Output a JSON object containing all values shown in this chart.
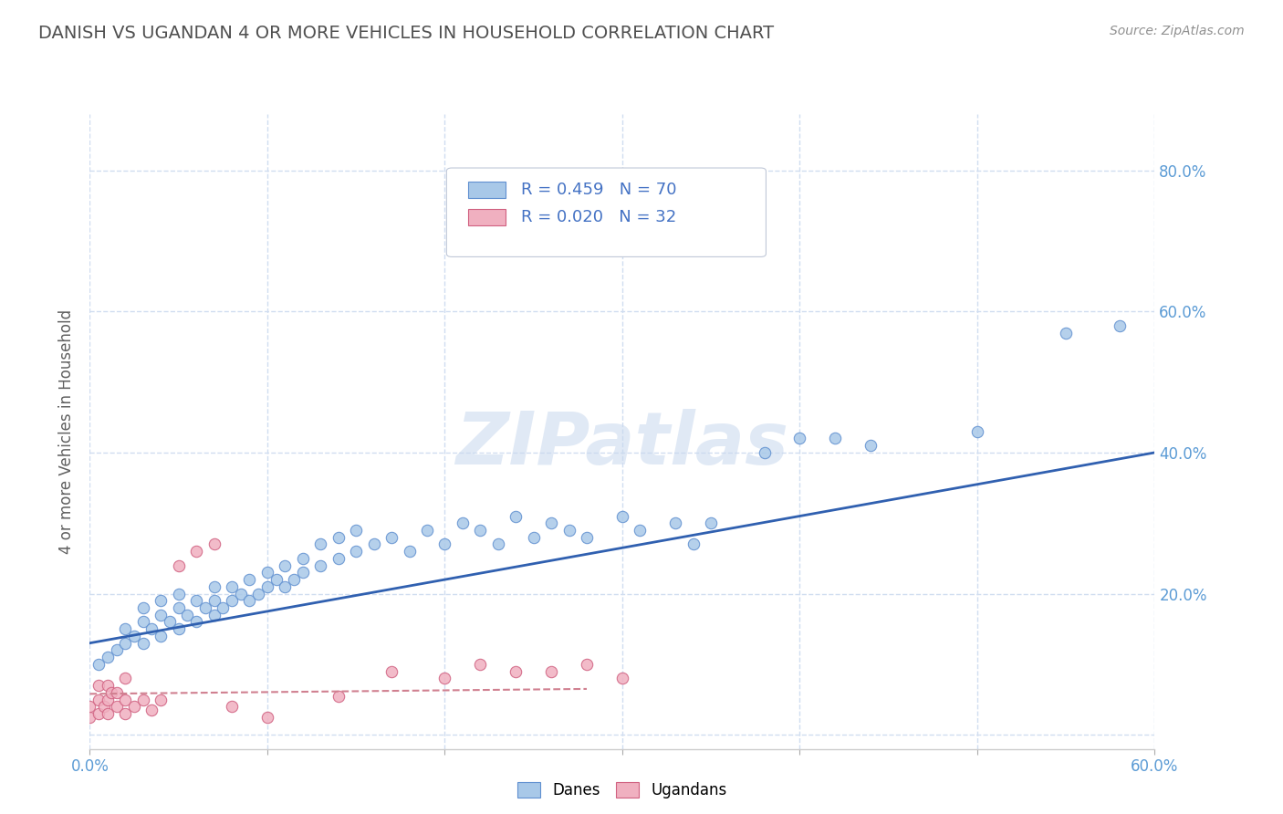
{
  "title": "DANISH VS UGANDAN 4 OR MORE VEHICLES IN HOUSEHOLD CORRELATION CHART",
  "source": "Source: ZipAtlas.com",
  "ylabel_label": "4 or more Vehicles in Household",
  "watermark": "ZIPatlas",
  "xlim": [
    0.0,
    0.6
  ],
  "ylim": [
    -0.02,
    0.88
  ],
  "xticks": [
    0.0,
    0.1,
    0.2,
    0.3,
    0.4,
    0.5,
    0.6
  ],
  "yticks": [
    0.0,
    0.2,
    0.4,
    0.6,
    0.8
  ],
  "ytick_labels_right": [
    "",
    "20.0%",
    "40.0%",
    "60.0%",
    "80.0%"
  ],
  "xtick_labels": [
    "0.0%",
    "",
    "",
    "",
    "",
    "",
    "60.0%"
  ],
  "danes_color": "#a8c8e8",
  "ugandans_color": "#f0b0c0",
  "danes_edge_color": "#6090d0",
  "ugandans_edge_color": "#d06080",
  "danes_line_color": "#3060b0",
  "ugandans_line_color": "#d08090",
  "title_color": "#505050",
  "legend_text_color": "#4472c4",
  "grid_color": "#d0ddf0",
  "background_color": "#ffffff",
  "danes_x": [
    0.005,
    0.01,
    0.015,
    0.02,
    0.02,
    0.025,
    0.03,
    0.03,
    0.03,
    0.035,
    0.04,
    0.04,
    0.04,
    0.045,
    0.05,
    0.05,
    0.05,
    0.055,
    0.06,
    0.06,
    0.065,
    0.07,
    0.07,
    0.07,
    0.075,
    0.08,
    0.08,
    0.085,
    0.09,
    0.09,
    0.095,
    0.1,
    0.1,
    0.105,
    0.11,
    0.11,
    0.115,
    0.12,
    0.12,
    0.13,
    0.13,
    0.14,
    0.14,
    0.15,
    0.15,
    0.16,
    0.17,
    0.18,
    0.19,
    0.2,
    0.21,
    0.22,
    0.23,
    0.24,
    0.25,
    0.26,
    0.27,
    0.28,
    0.3,
    0.31,
    0.33,
    0.34,
    0.35,
    0.38,
    0.4,
    0.42,
    0.44,
    0.5,
    0.55,
    0.58
  ],
  "danes_y": [
    0.1,
    0.11,
    0.12,
    0.13,
    0.15,
    0.14,
    0.13,
    0.16,
    0.18,
    0.15,
    0.14,
    0.17,
    0.19,
    0.16,
    0.15,
    0.18,
    0.2,
    0.17,
    0.16,
    0.19,
    0.18,
    0.17,
    0.19,
    0.21,
    0.18,
    0.19,
    0.21,
    0.2,
    0.19,
    0.22,
    0.2,
    0.21,
    0.23,
    0.22,
    0.21,
    0.24,
    0.22,
    0.23,
    0.25,
    0.24,
    0.27,
    0.25,
    0.28,
    0.26,
    0.29,
    0.27,
    0.28,
    0.26,
    0.29,
    0.27,
    0.3,
    0.29,
    0.27,
    0.31,
    0.28,
    0.3,
    0.29,
    0.28,
    0.31,
    0.29,
    0.3,
    0.27,
    0.3,
    0.4,
    0.42,
    0.42,
    0.41,
    0.43,
    0.57,
    0.58
  ],
  "ugandans_x": [
    0.0,
    0.0,
    0.005,
    0.005,
    0.005,
    0.008,
    0.01,
    0.01,
    0.01,
    0.012,
    0.015,
    0.015,
    0.02,
    0.02,
    0.02,
    0.025,
    0.03,
    0.035,
    0.04,
    0.05,
    0.06,
    0.07,
    0.08,
    0.1,
    0.14,
    0.17,
    0.2,
    0.22,
    0.24,
    0.26,
    0.28,
    0.3
  ],
  "ugandans_y": [
    0.025,
    0.04,
    0.03,
    0.05,
    0.07,
    0.04,
    0.03,
    0.05,
    0.07,
    0.06,
    0.04,
    0.06,
    0.03,
    0.05,
    0.08,
    0.04,
    0.05,
    0.035,
    0.05,
    0.24,
    0.26,
    0.27,
    0.04,
    0.025,
    0.055,
    0.09,
    0.08,
    0.1,
    0.09,
    0.09,
    0.1,
    0.08
  ],
  "danes_trend_x": [
    0.0,
    0.6
  ],
  "danes_trend_y": [
    0.13,
    0.4
  ],
  "ugandans_trend_x": [
    0.0,
    0.28
  ],
  "ugandans_trend_y": [
    0.058,
    0.065
  ]
}
